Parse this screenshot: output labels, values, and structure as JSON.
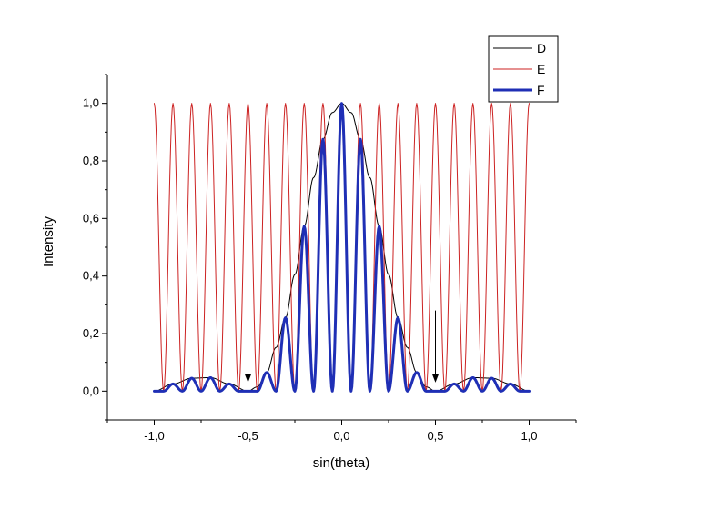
{
  "chart_data": {
    "type": "line",
    "xlabel": "sin(theta)",
    "ylabel": "Intensity",
    "xlim": [
      -1.25,
      1.25
    ],
    "ylim": [
      -0.1,
      1.1
    ],
    "x_ticks": [
      -1.0,
      -0.5,
      0.0,
      0.5,
      1.0
    ],
    "x_tick_labels": [
      "-1,0",
      "-0,5",
      "0,0",
      "0,5",
      "1,0"
    ],
    "y_ticks": [
      0.0,
      0.2,
      0.4,
      0.6,
      0.8,
      1.0
    ],
    "y_tick_labels": [
      "0,0",
      "0,2",
      "0,4",
      "0,6",
      "0,8",
      "1,0"
    ],
    "grid": false,
    "legend_position": "top-right",
    "series": [
      {
        "name": "D",
        "color": "#000000",
        "x": [
          -1.0,
          -0.9,
          -0.8,
          -0.7,
          -0.6,
          -0.5,
          -0.45,
          -0.4,
          -0.35,
          -0.3,
          -0.25,
          -0.2,
          -0.15,
          -0.1,
          -0.05,
          0.0,
          0.05,
          0.1,
          0.15,
          0.2,
          0.25,
          0.3,
          0.35,
          0.4,
          0.45,
          0.5,
          0.6,
          0.7,
          0.8,
          0.9,
          1.0
        ],
        "y": [
          0.0,
          0.025,
          0.045,
          0.047,
          0.025,
          0.0,
          0.015,
          0.065,
          0.152,
          0.255,
          0.405,
          0.573,
          0.742,
          0.875,
          0.968,
          1.0,
          0.968,
          0.875,
          0.742,
          0.573,
          0.405,
          0.255,
          0.152,
          0.065,
          0.015,
          0.0,
          0.025,
          0.047,
          0.045,
          0.025,
          0.0
        ]
      },
      {
        "name": "E",
        "color": "#cc2222",
        "x": [
          -1.0,
          -0.95,
          -0.9,
          -0.85,
          -0.8,
          -0.75,
          -0.7,
          -0.65,
          -0.6,
          -0.55,
          -0.5,
          -0.45,
          -0.4,
          -0.35,
          -0.3,
          -0.25,
          -0.2,
          -0.15,
          -0.1,
          -0.05,
          0.0,
          0.05,
          0.1,
          0.15,
          0.2,
          0.25,
          0.3,
          0.35,
          0.4,
          0.45,
          0.5,
          0.55,
          0.6,
          0.65,
          0.7,
          0.75,
          0.8,
          0.85,
          0.9,
          0.95,
          1.0
        ],
        "y": [
          1.0,
          0.0,
          1.0,
          0.0,
          1.0,
          0.0,
          1.0,
          0.0,
          1.0,
          0.0,
          1.0,
          0.0,
          1.0,
          0.0,
          1.0,
          0.0,
          1.0,
          0.0,
          1.0,
          0.0,
          1.0,
          0.0,
          1.0,
          0.0,
          1.0,
          0.0,
          1.0,
          0.0,
          1.0,
          0.0,
          1.0,
          0.0,
          1.0,
          0.0,
          1.0,
          0.0,
          1.0,
          0.0,
          1.0,
          0.0,
          1.0
        ]
      },
      {
        "name": "F",
        "color": "#1f2fb5",
        "x": [
          -1.0,
          -0.95,
          -0.9,
          -0.85,
          -0.8,
          -0.75,
          -0.7,
          -0.65,
          -0.6,
          -0.55,
          -0.5,
          -0.45,
          -0.4,
          -0.35,
          -0.3,
          -0.25,
          -0.2,
          -0.15,
          -0.1,
          -0.05,
          0.0,
          0.05,
          0.1,
          0.15,
          0.2,
          0.25,
          0.3,
          0.35,
          0.4,
          0.45,
          0.5,
          0.55,
          0.6,
          0.65,
          0.7,
          0.75,
          0.8,
          0.85,
          0.9,
          0.95,
          1.0
        ],
        "y": [
          0.0,
          0.0,
          0.025,
          0.0,
          0.045,
          0.0,
          0.047,
          0.0,
          0.025,
          0.0,
          0.0,
          0.0,
          0.065,
          0.0,
          0.255,
          0.0,
          0.573,
          0.0,
          0.875,
          0.0,
          1.0,
          0.0,
          0.875,
          0.0,
          0.573,
          0.0,
          0.255,
          0.0,
          0.065,
          0.0,
          0.0,
          0.0,
          0.025,
          0.0,
          0.047,
          0.0,
          0.045,
          0.0,
          0.025,
          0.0,
          0.0
        ]
      }
    ],
    "annotations": [
      {
        "type": "arrow",
        "x": -0.5,
        "y_from": 0.28,
        "y_to": 0.03
      },
      {
        "type": "arrow",
        "x": 0.5,
        "y_from": 0.28,
        "y_to": 0.03
      }
    ]
  }
}
